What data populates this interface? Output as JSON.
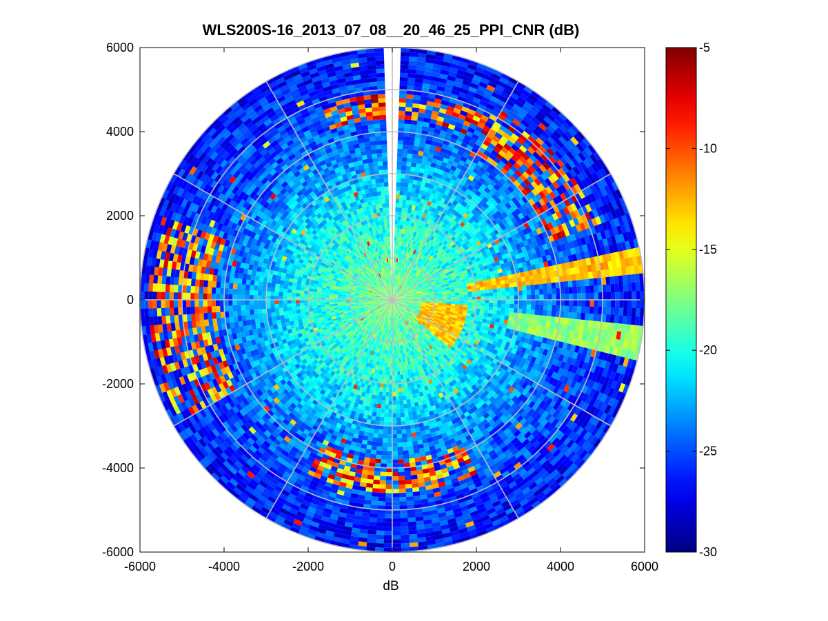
{
  "chart_data": {
    "type": "heatmap",
    "subtype": "polar-ppi",
    "title": "WLS200S-16_2013_07_08__20_46_25_PPI_CNR (dB)",
    "xlabel": "dB",
    "ylabel": "",
    "xlim": [
      -6000,
      6000
    ],
    "ylim": [
      -6000,
      6000
    ],
    "x_ticks": [
      -6000,
      -4000,
      -2000,
      0,
      2000,
      4000,
      6000
    ],
    "y_ticks": [
      6000,
      4000,
      2000,
      0,
      -2000,
      -4000,
      -6000
    ],
    "max_range": 6000,
    "range_ring_spacing": 1000,
    "spoke_step_deg": 30,
    "grid": true,
    "colorbar": {
      "colormap": "jet",
      "min": -30,
      "max": -5,
      "ticks": [
        -5,
        -10,
        -15,
        -20,
        -25,
        -30
      ],
      "placement": "right"
    },
    "missing_sector_deg": [
      -2,
      2
    ],
    "features": [
      {
        "label": "high-CNR band (east)",
        "azimuth_deg": [
          78,
          84
        ],
        "range": [
          1800,
          6000
        ],
        "cnr_db": -13
      },
      {
        "label": "high-CNR band (east-southeast)",
        "azimuth_deg": [
          97,
          104
        ],
        "range": [
          2800,
          6000
        ],
        "cnr_db": -17
      },
      {
        "label": "near-field echo",
        "azimuth_deg": [
          95,
          130
        ],
        "range": [
          700,
          1800
        ],
        "cnr_db": -13
      },
      {
        "label": "hard-target arc (north)",
        "azimuth_deg": [
          -20,
          30
        ],
        "range": [
          4300,
          4900
        ],
        "cnr_db": -6
      },
      {
        "label": "hard-target arc (northeast)",
        "azimuth_deg": [
          30,
          70
        ],
        "range": [
          4000,
          5200
        ],
        "cnr_db": -6
      },
      {
        "label": "hard-target arc (west)",
        "azimuth_deg": [
          240,
          290
        ],
        "range": [
          4200,
          5800
        ],
        "cnr_db": -7
      },
      {
        "label": "hard-target arc (south)",
        "azimuth_deg": [
          155,
          205
        ],
        "range": [
          3800,
          4600
        ],
        "cnr_db": -7
      }
    ]
  }
}
